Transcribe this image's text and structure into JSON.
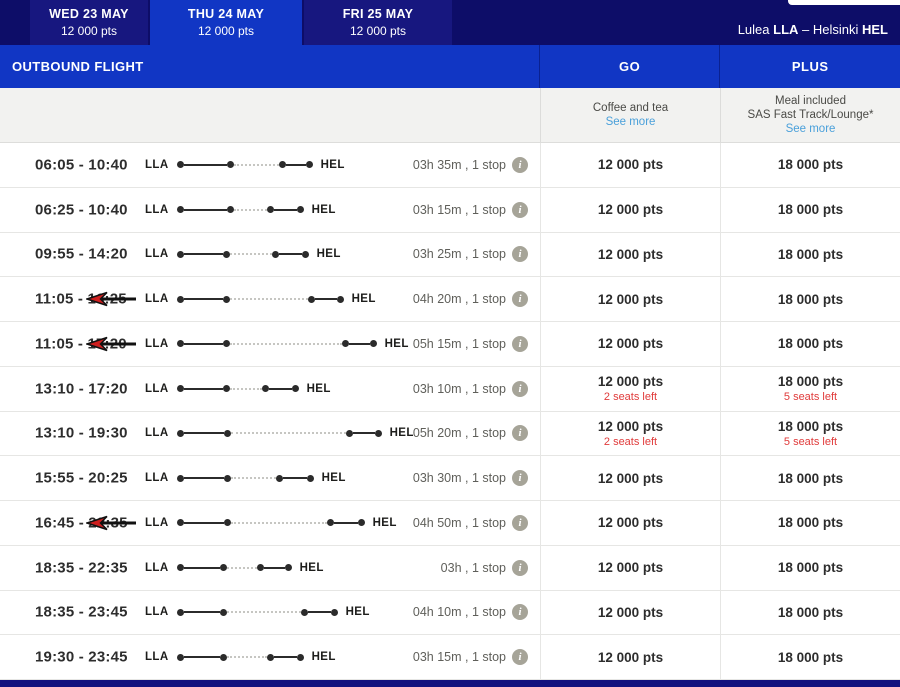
{
  "top_bar": {
    "tabs": [
      {
        "label": "WED 23 MAY",
        "price": "12 000 pts",
        "selected": false
      },
      {
        "label": "THU 24 MAY",
        "price": "12 000 pts",
        "selected": true
      },
      {
        "label": "FRI 25 MAY",
        "price": "12 000 pts",
        "selected": false
      }
    ],
    "route_summary": {
      "from_city": "Lulea ",
      "from_code": "LLA",
      "separator": " – ",
      "to_city": "Helsinki ",
      "to_code": "HEL"
    }
  },
  "table": {
    "header": {
      "left": "OUTBOUND FLIGHT",
      "go": "GO",
      "plus": "PLUS"
    },
    "fare_info": {
      "go": {
        "lines": [
          "Coffee and tea"
        ],
        "see_more": "See more"
      },
      "plus": {
        "lines": [
          "Meal included",
          "SAS Fast Track/Lounge*"
        ],
        "see_more": "See more"
      }
    },
    "rows": [
      {
        "time": "06:05 - 10:40",
        "origin": "LLA",
        "destination": "HEL",
        "duration": "03h 35m , 1 stop",
        "go_price": "12 000 pts",
        "plus_price": "18 000 pts",
        "go_note": "",
        "plus_note": "",
        "arrow": false,
        "seg1": 43,
        "gap": 45,
        "seg2": 20
      },
      {
        "time": "06:25 - 10:40",
        "origin": "LLA",
        "destination": "HEL",
        "duration": "03h 15m , 1 stop",
        "go_price": "12 000 pts",
        "plus_price": "18 000 pts",
        "go_note": "",
        "plus_note": "",
        "arrow": false,
        "seg1": 43,
        "gap": 33,
        "seg2": 23
      },
      {
        "time": "09:55 - 14:20",
        "origin": "LLA",
        "destination": "HEL",
        "duration": "03h 25m , 1 stop",
        "go_price": "12 000 pts",
        "plus_price": "18 000 pts",
        "go_note": "",
        "plus_note": "",
        "arrow": false,
        "seg1": 39,
        "gap": 42,
        "seg2": 23
      },
      {
        "time": "11:05 - 16:25",
        "origin": "LLA",
        "destination": "HEL",
        "duration": "04h 20m , 1 stop",
        "go_price": "12 000 pts",
        "plus_price": "18 000 pts",
        "go_note": "",
        "plus_note": "",
        "arrow": true,
        "seg1": 39,
        "gap": 78,
        "seg2": 22
      },
      {
        "time": "11:05 - 17:20",
        "origin": "LLA",
        "destination": "HEL",
        "duration": "05h 15m , 1 stop",
        "go_price": "12 000 pts",
        "plus_price": "18 000 pts",
        "go_note": "",
        "plus_note": "",
        "arrow": true,
        "seg1": 39,
        "gap": 112,
        "seg2": 21
      },
      {
        "time": "13:10 - 17:20",
        "origin": "LLA",
        "destination": "HEL",
        "duration": "03h 10m , 1 stop",
        "go_price": "12 000 pts",
        "plus_price": "18 000 pts",
        "go_note": "2 seats left",
        "plus_note": "5 seats left",
        "arrow": false,
        "seg1": 39,
        "gap": 32,
        "seg2": 23
      },
      {
        "time": "13:10 - 19:30",
        "origin": "LLA",
        "destination": "HEL",
        "duration": "05h 20m , 1 stop",
        "go_price": "12 000 pts",
        "plus_price": "18 000 pts",
        "go_note": "2 seats left",
        "plus_note": "5 seats left",
        "arrow": false,
        "seg1": 40,
        "gap": 115,
        "seg2": 22
      },
      {
        "time": "15:55 - 20:25",
        "origin": "LLA",
        "destination": "HEL",
        "duration": "03h 30m , 1 stop",
        "go_price": "12 000 pts",
        "plus_price": "18 000 pts",
        "go_note": "",
        "plus_note": "",
        "arrow": false,
        "seg1": 40,
        "gap": 45,
        "seg2": 24
      },
      {
        "time": "16:45 - 22:35",
        "origin": "LLA",
        "destination": "HEL",
        "duration": "04h 50m , 1 stop",
        "go_price": "12 000 pts",
        "plus_price": "18 000 pts",
        "go_note": "",
        "plus_note": "",
        "arrow": true,
        "seg1": 40,
        "gap": 96,
        "seg2": 24
      },
      {
        "time": "18:35 - 22:35",
        "origin": "LLA",
        "destination": "HEL",
        "duration": "03h , 1 stop",
        "go_price": "12 000 pts",
        "plus_price": "18 000 pts",
        "go_note": "",
        "plus_note": "",
        "arrow": false,
        "seg1": 36,
        "gap": 30,
        "seg2": 21
      },
      {
        "time": "18:35 - 23:45",
        "origin": "LLA",
        "destination": "HEL",
        "duration": "04h 10m , 1 stop",
        "go_price": "12 000 pts",
        "plus_price": "18 000 pts",
        "go_note": "",
        "plus_note": "",
        "arrow": false,
        "seg1": 36,
        "gap": 74,
        "seg2": 23
      },
      {
        "time": "19:30 - 23:45",
        "origin": "LLA",
        "destination": "HEL",
        "duration": "03h 15m , 1 stop",
        "go_price": "12 000 pts",
        "plus_price": "18 000 pts",
        "go_note": "",
        "plus_note": "",
        "arrow": false,
        "seg1": 36,
        "gap": 40,
        "seg2": 23
      }
    ]
  },
  "colors": {
    "navy": "#0d0d68",
    "tab_inactive": "#17177f",
    "accent_blue": "#1136c4",
    "header_divider": "#0a2191",
    "see_more_link": "#4aa0da",
    "seats_left_red": "#e03a3a",
    "price_text": "#2d2d2d",
    "duration_gray": "#5f5f5a"
  }
}
